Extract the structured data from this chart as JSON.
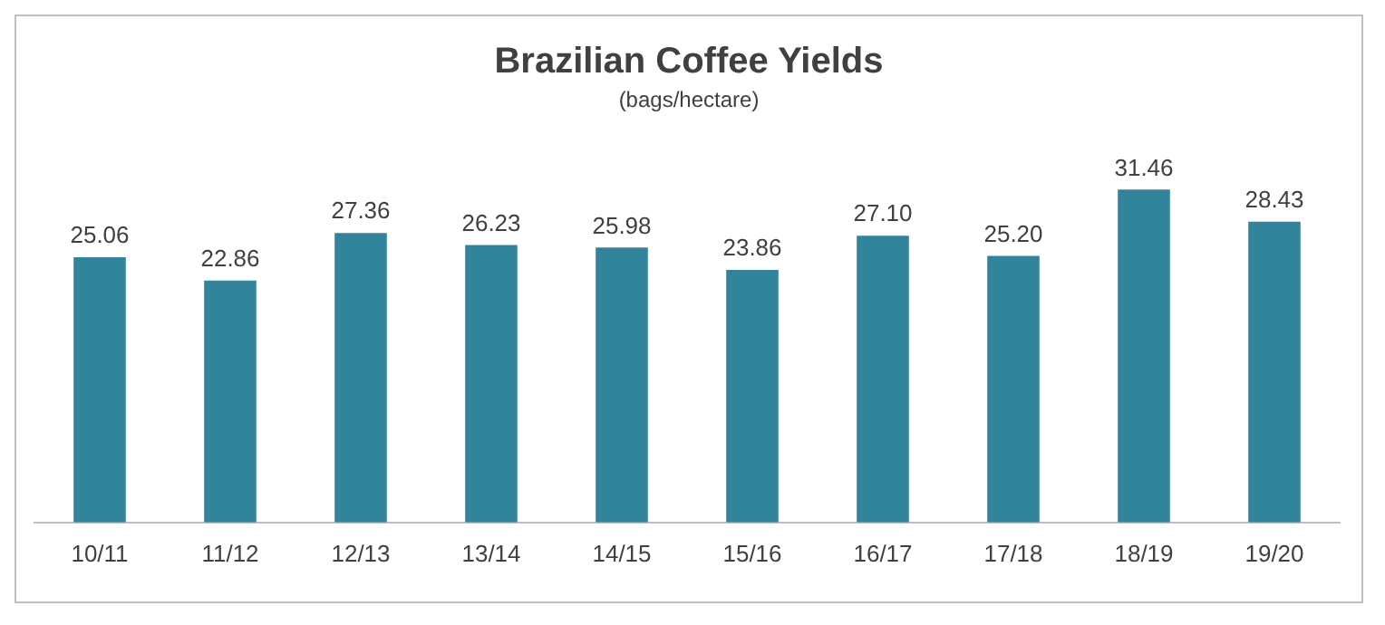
{
  "chart_data": {
    "type": "bar",
    "title": "Brazilian Coffee Yields",
    "subtitle": "(bags/hectare)",
    "categories": [
      "10/11",
      "11/12",
      "12/13",
      "13/14",
      "14/15",
      "15/16",
      "16/17",
      "17/18",
      "18/19",
      "19/20"
    ],
    "values": [
      25.06,
      22.86,
      27.36,
      26.23,
      25.98,
      23.86,
      27.1,
      25.2,
      31.46,
      28.43
    ],
    "value_labels": [
      "25.06",
      "22.86",
      "27.36",
      "26.23",
      "25.98",
      "23.86",
      "27.10",
      "25.20",
      "31.46",
      "28.43"
    ],
    "color": "#31849b",
    "grid": false,
    "legend": false
  }
}
